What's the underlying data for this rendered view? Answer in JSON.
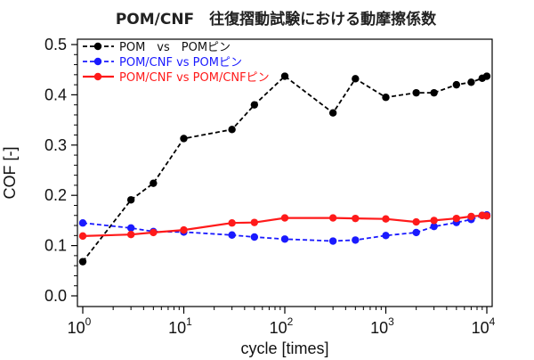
{
  "chart_data": {
    "type": "line",
    "title": "POM/CNF　往復摺動試験における動摩擦係数",
    "xlabel": "cycle [times]",
    "ylabel": "COF [-]",
    "xscale": "log",
    "xlim": [
      1,
      10000
    ],
    "ylim": [
      0,
      0.5
    ],
    "x_ticks": [
      {
        "base": "10",
        "exp": "0"
      },
      {
        "base": "10",
        "exp": "1"
      },
      {
        "base": "10",
        "exp": "2"
      },
      {
        "base": "10",
        "exp": "3"
      },
      {
        "base": "10",
        "exp": "4"
      }
    ],
    "y_ticks": [
      "0.0",
      "0.1",
      "0.2",
      "0.3",
      "0.4",
      "0.5"
    ],
    "legend_position": "top-left",
    "grid": false,
    "series": [
      {
        "name": "POM　vs　POMピン",
        "color": "#000000",
        "dash": "dashed",
        "x": [
          1,
          3,
          5,
          10,
          30,
          50,
          100,
          300,
          500,
          1000,
          2000,
          3000,
          5000,
          7000,
          9000,
          10000
        ],
        "y": [
          0.068,
          0.191,
          0.224,
          0.313,
          0.331,
          0.38,
          0.437,
          0.364,
          0.432,
          0.395,
          0.404,
          0.404,
          0.42,
          0.425,
          0.433,
          0.437
        ]
      },
      {
        "name": "POM/CNF vs POMピン",
        "color": "#1a1aff",
        "dash": "dashed",
        "x": [
          1,
          3,
          5,
          10,
          30,
          50,
          100,
          300,
          500,
          1000,
          2000,
          3000,
          5000,
          7000,
          9000,
          10000
        ],
        "y": [
          0.145,
          0.135,
          0.128,
          0.127,
          0.121,
          0.117,
          0.113,
          0.109,
          0.111,
          0.12,
          0.126,
          0.138,
          0.146,
          0.152,
          0.16,
          0.161
        ]
      },
      {
        "name": "POM/CNF vs POM/CNFピン",
        "color": "#ff1a1a",
        "dash": "solid",
        "x": [
          1,
          3,
          5,
          10,
          30,
          50,
          100,
          300,
          500,
          1000,
          2000,
          3000,
          5000,
          7000,
          9000,
          10000
        ],
        "y": [
          0.119,
          0.122,
          0.126,
          0.131,
          0.145,
          0.146,
          0.155,
          0.155,
          0.154,
          0.153,
          0.147,
          0.15,
          0.154,
          0.158,
          0.16,
          0.159
        ]
      }
    ]
  }
}
